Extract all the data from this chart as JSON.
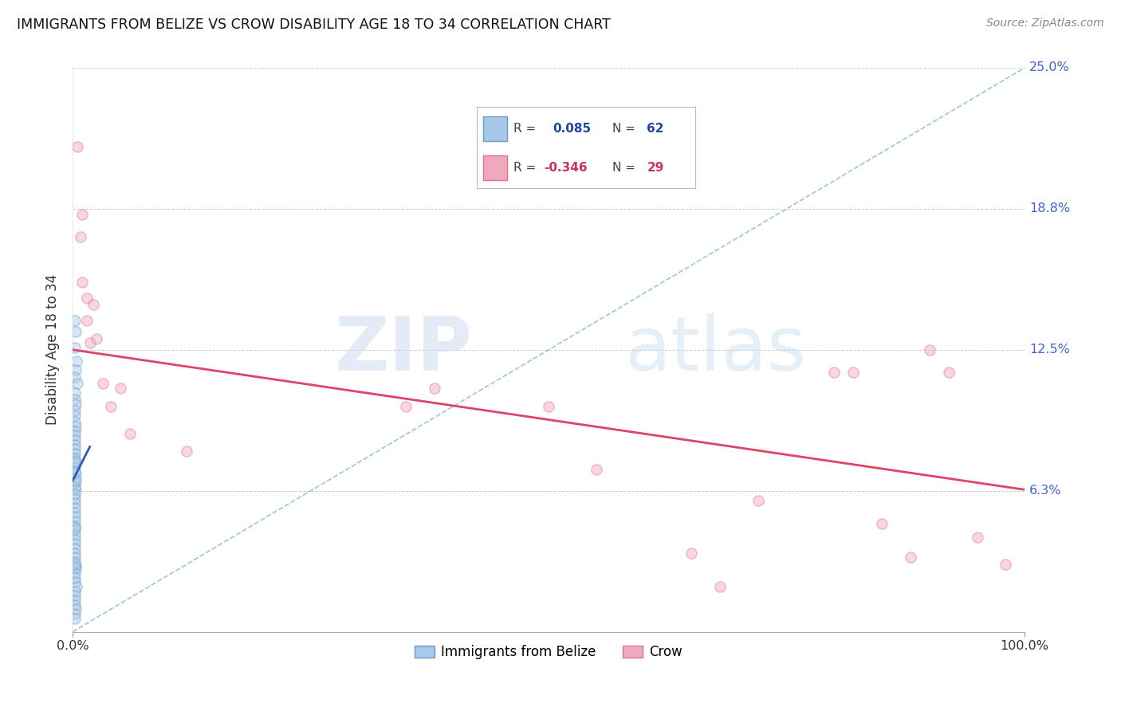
{
  "title": "IMMIGRANTS FROM BELIZE VS CROW DISABILITY AGE 18 TO 34 CORRELATION CHART",
  "source": "Source: ZipAtlas.com",
  "ylabel": "Disability Age 18 to 34",
  "xlim": [
    0,
    1.0
  ],
  "ylim": [
    0,
    0.25
  ],
  "yticks": [
    0.0,
    0.0625,
    0.125,
    0.1875,
    0.25
  ],
  "ytick_labels": [
    "",
    "6.3%",
    "12.5%",
    "18.8%",
    "25.0%"
  ],
  "xtick_vals": [
    0.0,
    1.0
  ],
  "xtick_labels": [
    "0.0%",
    "100.0%"
  ],
  "blue_scatter_x": [
    0.002,
    0.003,
    0.002,
    0.004,
    0.003,
    0.002,
    0.005,
    0.002,
    0.002,
    0.003,
    0.002,
    0.002,
    0.002,
    0.003,
    0.002,
    0.002,
    0.002,
    0.002,
    0.002,
    0.002,
    0.002,
    0.002,
    0.002,
    0.002,
    0.003,
    0.002,
    0.002,
    0.002,
    0.003,
    0.002,
    0.002,
    0.002,
    0.002,
    0.002,
    0.002,
    0.002,
    0.002,
    0.002,
    0.002,
    0.002,
    0.002,
    0.002,
    0.002,
    0.002,
    0.002,
    0.003,
    0.003,
    0.002,
    0.002,
    0.002,
    0.004,
    0.002,
    0.002,
    0.002,
    0.002,
    0.003,
    0.002,
    0.002,
    0.002,
    0.003,
    0.002,
    0.002
  ],
  "blue_scatter_y": [
    0.138,
    0.133,
    0.126,
    0.12,
    0.116,
    0.113,
    0.11,
    0.106,
    0.103,
    0.101,
    0.098,
    0.096,
    0.093,
    0.091,
    0.089,
    0.087,
    0.085,
    0.083,
    0.081,
    0.079,
    0.077,
    0.075,
    0.073,
    0.071,
    0.07,
    0.068,
    0.066,
    0.064,
    0.063,
    0.061,
    0.059,
    0.057,
    0.055,
    0.053,
    0.051,
    0.049,
    0.047,
    0.045,
    0.043,
    0.041,
    0.039,
    0.037,
    0.035,
    0.033,
    0.031,
    0.029,
    0.028,
    0.026,
    0.024,
    0.022,
    0.02,
    0.018,
    0.016,
    0.014,
    0.012,
    0.01,
    0.008,
    0.006,
    0.076,
    0.067,
    0.046,
    0.03
  ],
  "blue_line_x": [
    0.0,
    0.018
  ],
  "blue_line_y": [
    0.067,
    0.082
  ],
  "pink_scatter_x": [
    0.005,
    0.008,
    0.01,
    0.015,
    0.015,
    0.018,
    0.022,
    0.032,
    0.04,
    0.05,
    0.35,
    0.38,
    0.5,
    0.55,
    0.65,
    0.68,
    0.72,
    0.8,
    0.82,
    0.85,
    0.88,
    0.9,
    0.92,
    0.95,
    0.98,
    0.01,
    0.025,
    0.06,
    0.12
  ],
  "pink_scatter_y": [
    0.215,
    0.175,
    0.155,
    0.148,
    0.138,
    0.128,
    0.145,
    0.11,
    0.1,
    0.108,
    0.1,
    0.108,
    0.1,
    0.072,
    0.035,
    0.02,
    0.058,
    0.115,
    0.115,
    0.048,
    0.033,
    0.125,
    0.115,
    0.042,
    0.03,
    0.185,
    0.13,
    0.088,
    0.08
  ],
  "pink_line_x": [
    0.0,
    1.0
  ],
  "pink_line_y": [
    0.125,
    0.063
  ],
  "diag_line_x": [
    0.0,
    1.0
  ],
  "diag_line_y": [
    0.0,
    0.25
  ],
  "watermark_zip": "ZIP",
  "watermark_atlas": "atlas",
  "scatter_size": 90,
  "scatter_alpha": 0.45,
  "scatter_linewidth": 1.0,
  "blue_face": "#a8c8e8",
  "blue_edge": "#6699cc",
  "pink_face": "#f0a8bc",
  "pink_edge": "#e07090",
  "blue_line_color": "#3355bb",
  "pink_line_color": "#dd4466",
  "diag_color": "#88bbdd",
  "grid_color": "#cccccc",
  "title_color": "#111111",
  "ytick_color": "#4466cc",
  "source_color": "#888888",
  "legend_R_color_blue": "#2244aa",
  "legend_R_color_pink": "#cc3355",
  "legend_N_color_blue": "#2244aa",
  "legend_N_color_pink": "#cc3355"
}
